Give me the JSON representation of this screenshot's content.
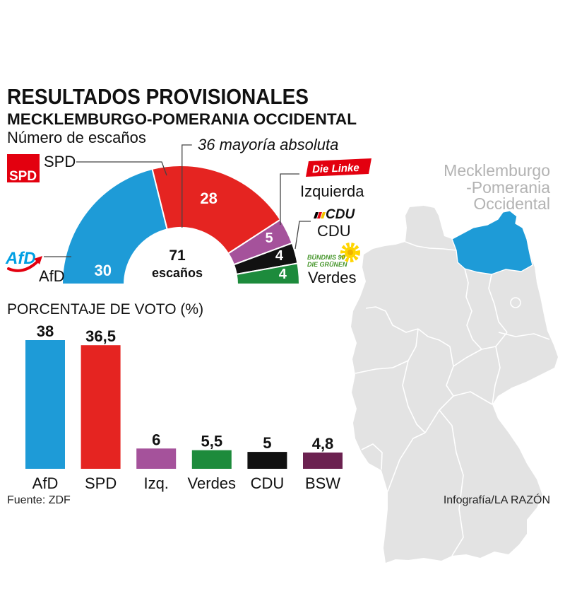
{
  "header": {
    "title": "RESULTADOS PROVISIONALES",
    "subtitle": "MECKLEMBURGO-POMERANIA OCCIDENTAL"
  },
  "logos": {
    "spd": "SPD",
    "afd": "AfD",
    "linke": "Die Linke",
    "cdu": "CDU",
    "gruene_line1": "BÜNDNIS 90",
    "gruene_line2": "DIE GRÜNEN"
  },
  "map": {
    "region_label": [
      "Mecklemburgo",
      "-Pomerania",
      "Occidental"
    ],
    "highlight_color": "#1e9bd7",
    "base_color": "#e3e3e3",
    "label_color": "#b3b3b3"
  },
  "footer": {
    "source": "Fuente: ZDF",
    "credit": "Infografía/LA RAZÓN"
  },
  "chart_data": [
    {
      "type": "pie",
      "shape": "hemicycle",
      "title": "Número de escaños",
      "categories": [
        "AfD",
        "SPD",
        "Izquierda",
        "CDU",
        "Verdes"
      ],
      "values": [
        30,
        28,
        5,
        4,
        4
      ],
      "value_labels": [
        "30",
        "28",
        "5",
        "4",
        "4"
      ],
      "colors": [
        "#1e9bd7",
        "#e52421",
        "#a5529b",
        "#111111",
        "#1d8b3c"
      ],
      "total": 71,
      "total_label": "escaños",
      "majority": 36,
      "majority_label": "36 mayoría absoluta"
    },
    {
      "type": "bar",
      "title": "PORCENTAJE DE VOTO (%)",
      "categories": [
        "AfD",
        "SPD",
        "Izq.",
        "Verdes",
        "CDU",
        "BSW"
      ],
      "values": [
        38,
        36.5,
        6,
        5.5,
        5,
        4.8
      ],
      "value_labels": [
        "38",
        "36,5",
        "6",
        "5,5",
        "5",
        "4,8"
      ],
      "colors": [
        "#1e9bd7",
        "#e52421",
        "#a5529b",
        "#1d8b3c",
        "#111111",
        "#6b2150"
      ]
    }
  ]
}
